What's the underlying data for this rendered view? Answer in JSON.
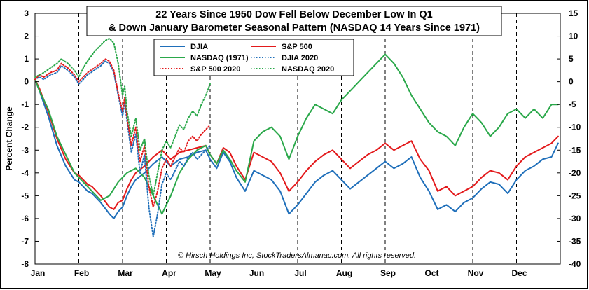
{
  "chart_data": {
    "type": "line",
    "title": [
      "22 Years Since 1950 Dow Fell Below December Low In Q1",
      "& Down January Barometer Seasonal Pattern (NASDAQ 14 Years Since 1971)"
    ],
    "ylabel": "Percent Change",
    "ylim": [
      -8,
      3
    ],
    "yticks": [
      "3",
      "2",
      "1",
      "0",
      "-1",
      "-2",
      "-3",
      "-4",
      "-5",
      "-6",
      "-7",
      "-8"
    ],
    "y2lim": [
      -40,
      15
    ],
    "y2ticks": [
      "15",
      "10",
      "5",
      "0",
      "-5",
      "-10",
      "-15",
      "-20",
      "-25",
      "-30",
      "-35",
      "-40"
    ],
    "xlim": [
      0,
      12
    ],
    "xticks": [
      "Jan",
      "Feb",
      "Mar",
      "Apr",
      "May",
      "Jun",
      "Jul",
      "Aug",
      "Sep",
      "Oct",
      "Nov",
      "Dec"
    ],
    "copyright": "© Hirsch Holdings Inc, StockTradersAlmanac.com. All rights reserved.",
    "legend": [
      {
        "label": "DJIA",
        "color": "#1f6fba",
        "dash": "solid"
      },
      {
        "label": "S&P 500",
        "color": "#e31a1c",
        "dash": "solid"
      },
      {
        "label": "NASDAQ (1971)",
        "color": "#2aa84a",
        "dash": "solid"
      },
      {
        "label": "DJIA 2020",
        "color": "#1f6fba",
        "dash": "dotted"
      },
      {
        "label": "S&P 500 2020",
        "color": "#e31a1c",
        "dash": "dotted"
      },
      {
        "label": "NASDAQ 2020",
        "color": "#2aa84a",
        "dash": "dotted"
      }
    ],
    "series": [
      {
        "name": "DJIA",
        "axis": "left",
        "color": "#1f6fba",
        "dash": "solid",
        "x": [
          0,
          0.1,
          0.3,
          0.5,
          0.7,
          0.9,
          1.0,
          1.1,
          1.2,
          1.3,
          1.5,
          1.7,
          1.8,
          1.9,
          2.0,
          2.1,
          2.2,
          2.3,
          2.5,
          2.7,
          2.9,
          3.0,
          3.1,
          3.3,
          3.5,
          3.7,
          3.9,
          4.0,
          4.15,
          4.3,
          4.45,
          4.6,
          4.8,
          5.0,
          5.2,
          5.4,
          5.6,
          5.8,
          6.0,
          6.2,
          6.4,
          6.6,
          6.8,
          7.0,
          7.2,
          7.4,
          7.6,
          7.8,
          8.0,
          8.2,
          8.4,
          8.6,
          8.8,
          9.0,
          9.2,
          9.4,
          9.6,
          9.8,
          10.0,
          10.2,
          10.4,
          10.6,
          10.8,
          11.0,
          11.2,
          11.4,
          11.6,
          11.8,
          11.95
        ],
        "y": [
          0.1,
          -0.4,
          -1.5,
          -2.8,
          -3.7,
          -4.3,
          -4.4,
          -4.6,
          -4.8,
          -4.9,
          -5.3,
          -5.8,
          -6.0,
          -5.7,
          -5.5,
          -5.0,
          -4.6,
          -4.3,
          -4.0,
          -3.6,
          -3.3,
          -3.5,
          -3.7,
          -3.4,
          -3.3,
          -3.1,
          -3.0,
          -3.4,
          -3.8,
          -3.1,
          -3.5,
          -4.2,
          -4.8,
          -3.9,
          -4.1,
          -4.3,
          -4.8,
          -5.8,
          -5.4,
          -4.9,
          -4.4,
          -4.1,
          -3.9,
          -4.3,
          -4.7,
          -4.4,
          -4.1,
          -3.8,
          -3.5,
          -3.8,
          -3.6,
          -3.3,
          -4.2,
          -4.8,
          -5.6,
          -5.4,
          -5.7,
          -5.3,
          -5.1,
          -4.7,
          -4.4,
          -4.5,
          -4.9,
          -4.3,
          -3.9,
          -3.7,
          -3.4,
          -3.3,
          -2.7
        ]
      },
      {
        "name": "S&P 500",
        "axis": "left",
        "color": "#e31a1c",
        "dash": "solid",
        "x": [
          0,
          0.1,
          0.3,
          0.5,
          0.7,
          0.9,
          1.0,
          1.1,
          1.2,
          1.3,
          1.5,
          1.7,
          1.8,
          1.9,
          2.0,
          2.1,
          2.2,
          2.3,
          2.5,
          2.7,
          2.9,
          3.0,
          3.1,
          3.3,
          3.5,
          3.7,
          3.9,
          4.0,
          4.15,
          4.3,
          4.45,
          4.6,
          4.8,
          5.0,
          5.2,
          5.4,
          5.6,
          5.8,
          6.0,
          6.2,
          6.4,
          6.6,
          6.8,
          7.0,
          7.2,
          7.4,
          7.6,
          7.8,
          8.0,
          8.2,
          8.4,
          8.6,
          8.8,
          9.0,
          9.2,
          9.4,
          9.6,
          9.8,
          10.0,
          10.2,
          10.4,
          10.6,
          10.8,
          11.0,
          11.2,
          11.4,
          11.6,
          11.8,
          11.95
        ],
        "y": [
          0.1,
          -0.3,
          -1.3,
          -2.5,
          -3.4,
          -4.0,
          -4.1,
          -4.3,
          -4.5,
          -4.6,
          -5.0,
          -5.5,
          -5.6,
          -5.3,
          -5.2,
          -4.7,
          -4.3,
          -4.0,
          -3.7,
          -3.3,
          -3.0,
          -3.2,
          -3.4,
          -3.1,
          -3.0,
          -2.9,
          -2.8,
          -3.2,
          -3.6,
          -2.9,
          -3.1,
          -3.7,
          -4.3,
          -3.1,
          -3.3,
          -3.5,
          -4.0,
          -4.8,
          -4.4,
          -3.9,
          -3.5,
          -3.2,
          -3.0,
          -3.4,
          -3.8,
          -3.5,
          -3.2,
          -3.0,
          -2.7,
          -3.0,
          -2.8,
          -2.6,
          -3.4,
          -3.9,
          -4.8,
          -4.6,
          -5.0,
          -4.8,
          -4.6,
          -4.2,
          -3.9,
          -4.0,
          -4.3,
          -3.7,
          -3.3,
          -3.1,
          -2.9,
          -2.7,
          -2.4
        ]
      },
      {
        "name": "NASDAQ (1971)",
        "axis": "right",
        "color": "#2aa84a",
        "dash": "solid",
        "x": [
          0,
          0.1,
          0.3,
          0.5,
          0.7,
          0.9,
          1.0,
          1.1,
          1.3,
          1.5,
          1.7,
          1.9,
          2.1,
          2.3,
          2.5,
          2.7,
          2.9,
          3.0,
          3.1,
          3.3,
          3.5,
          3.7,
          3.9,
          4.0,
          4.15,
          4.3,
          4.45,
          4.6,
          4.8,
          5.0,
          5.2,
          5.4,
          5.6,
          5.8,
          6.0,
          6.2,
          6.4,
          6.6,
          6.8,
          7.0,
          7.2,
          7.4,
          7.6,
          7.8,
          8.0,
          8.2,
          8.4,
          8.6,
          8.8,
          9.0,
          9.2,
          9.4,
          9.6,
          9.8,
          10.0,
          10.2,
          10.4,
          10.6,
          10.8,
          11.0,
          11.2,
          11.4,
          11.6,
          11.8,
          11.95
        ],
        "y": [
          0.5,
          -2.0,
          -6.0,
          -12.0,
          -16.0,
          -20.0,
          -21.0,
          -22.0,
          -24.0,
          -26.0,
          -25.0,
          -22.0,
          -20.0,
          -19.0,
          -21.0,
          -25.0,
          -29.0,
          -27.0,
          -25.0,
          -20.0,
          -17.0,
          -15.0,
          -14.0,
          -16.0,
          -18.0,
          -15.0,
          -17.0,
          -19.5,
          -22.0,
          -13.0,
          -11.0,
          -10.0,
          -12.0,
          -17.0,
          -12.0,
          -8.0,
          -5.0,
          -6.0,
          -7.0,
          -4.0,
          -2.0,
          0.0,
          2.0,
          4.0,
          6.0,
          4.0,
          1.0,
          -3.0,
          -6.0,
          -9.0,
          -11.0,
          -12.0,
          -14.0,
          -10.0,
          -7.0,
          -9.0,
          -12.0,
          -10.0,
          -7.0,
          -6.0,
          -8.0,
          -6.0,
          -8.0,
          -5.0,
          -5.0
        ]
      },
      {
        "name": "DJIA 2020",
        "axis": "left",
        "color": "#1f6fba",
        "dash": "dotted",
        "x": [
          0,
          0.1,
          0.2,
          0.35,
          0.5,
          0.6,
          0.75,
          0.9,
          1.0,
          1.1,
          1.2,
          1.35,
          1.5,
          1.6,
          1.7,
          1.8,
          1.9,
          2.0,
          2.05,
          2.1,
          2.2,
          2.3,
          2.4,
          2.5,
          2.6,
          2.7,
          2.8,
          2.9,
          3.0,
          3.1,
          3.2,
          3.3,
          3.4,
          3.5,
          3.6,
          3.7,
          3.8,
          3.9,
          4.0
        ],
        "y": [
          0.1,
          0.2,
          0.1,
          0.3,
          0.4,
          0.7,
          0.5,
          0.2,
          -0.1,
          0.1,
          0.3,
          0.5,
          0.7,
          0.9,
          0.8,
          0.4,
          -0.6,
          -1.5,
          -0.9,
          -1.7,
          -3.1,
          -2.3,
          -4.0,
          -3.2,
          -5.5,
          -6.8,
          -5.8,
          -4.5,
          -4.0,
          -4.3,
          -3.9,
          -3.5,
          -3.7,
          -3.3,
          -3.1,
          -3.4,
          -3.2,
          -3.0,
          -2.8
        ]
      },
      {
        "name": "S&P 500 2020",
        "axis": "left",
        "color": "#e31a1c",
        "dash": "dotted",
        "x": [
          0,
          0.1,
          0.2,
          0.35,
          0.5,
          0.6,
          0.75,
          0.9,
          1.0,
          1.1,
          1.2,
          1.35,
          1.5,
          1.6,
          1.7,
          1.8,
          1.9,
          2.0,
          2.05,
          2.1,
          2.2,
          2.3,
          2.4,
          2.5,
          2.6,
          2.7,
          2.8,
          2.9,
          3.0,
          3.1,
          3.2,
          3.3,
          3.4,
          3.5,
          3.6,
          3.7,
          3.8,
          3.9,
          4.0
        ],
        "y": [
          0.1,
          0.3,
          0.2,
          0.4,
          0.5,
          0.8,
          0.6,
          0.3,
          0.0,
          0.2,
          0.4,
          0.6,
          0.8,
          1.0,
          0.9,
          0.5,
          -0.5,
          -1.3,
          -0.7,
          -1.5,
          -2.8,
          -2.0,
          -3.5,
          -2.8,
          -4.6,
          -5.5,
          -4.8,
          -3.8,
          -3.4,
          -3.7,
          -3.3,
          -2.9,
          -3.1,
          -2.6,
          -2.4,
          -2.6,
          -2.3,
          -2.1,
          -1.9
        ]
      },
      {
        "name": "NASDAQ 2020",
        "axis": "left",
        "color": "#2aa84a",
        "dash": "dotted",
        "x": [
          0,
          0.1,
          0.2,
          0.35,
          0.5,
          0.6,
          0.75,
          0.9,
          1.0,
          1.1,
          1.2,
          1.35,
          1.5,
          1.6,
          1.7,
          1.8,
          1.9,
          2.0,
          2.05,
          2.1,
          2.2,
          2.3,
          2.4,
          2.5,
          2.6,
          2.7,
          2.8,
          2.9,
          3.0,
          3.1,
          3.2,
          3.3,
          3.4,
          3.5,
          3.6,
          3.7,
          3.8,
          3.9,
          4.0
        ],
        "y": [
          0.2,
          0.3,
          0.4,
          0.6,
          0.8,
          1.0,
          0.8,
          0.5,
          0.2,
          0.6,
          0.9,
          1.3,
          1.6,
          1.8,
          1.9,
          1.7,
          0.8,
          -0.6,
          -0.2,
          -1.3,
          -2.4,
          -1.6,
          -3.0,
          -2.5,
          -4.1,
          -5.0,
          -4.0,
          -3.0,
          -2.6,
          -2.9,
          -2.4,
          -1.9,
          -2.1,
          -1.6,
          -1.3,
          -1.5,
          -1.0,
          -0.6,
          -0.1
        ]
      }
    ]
  }
}
